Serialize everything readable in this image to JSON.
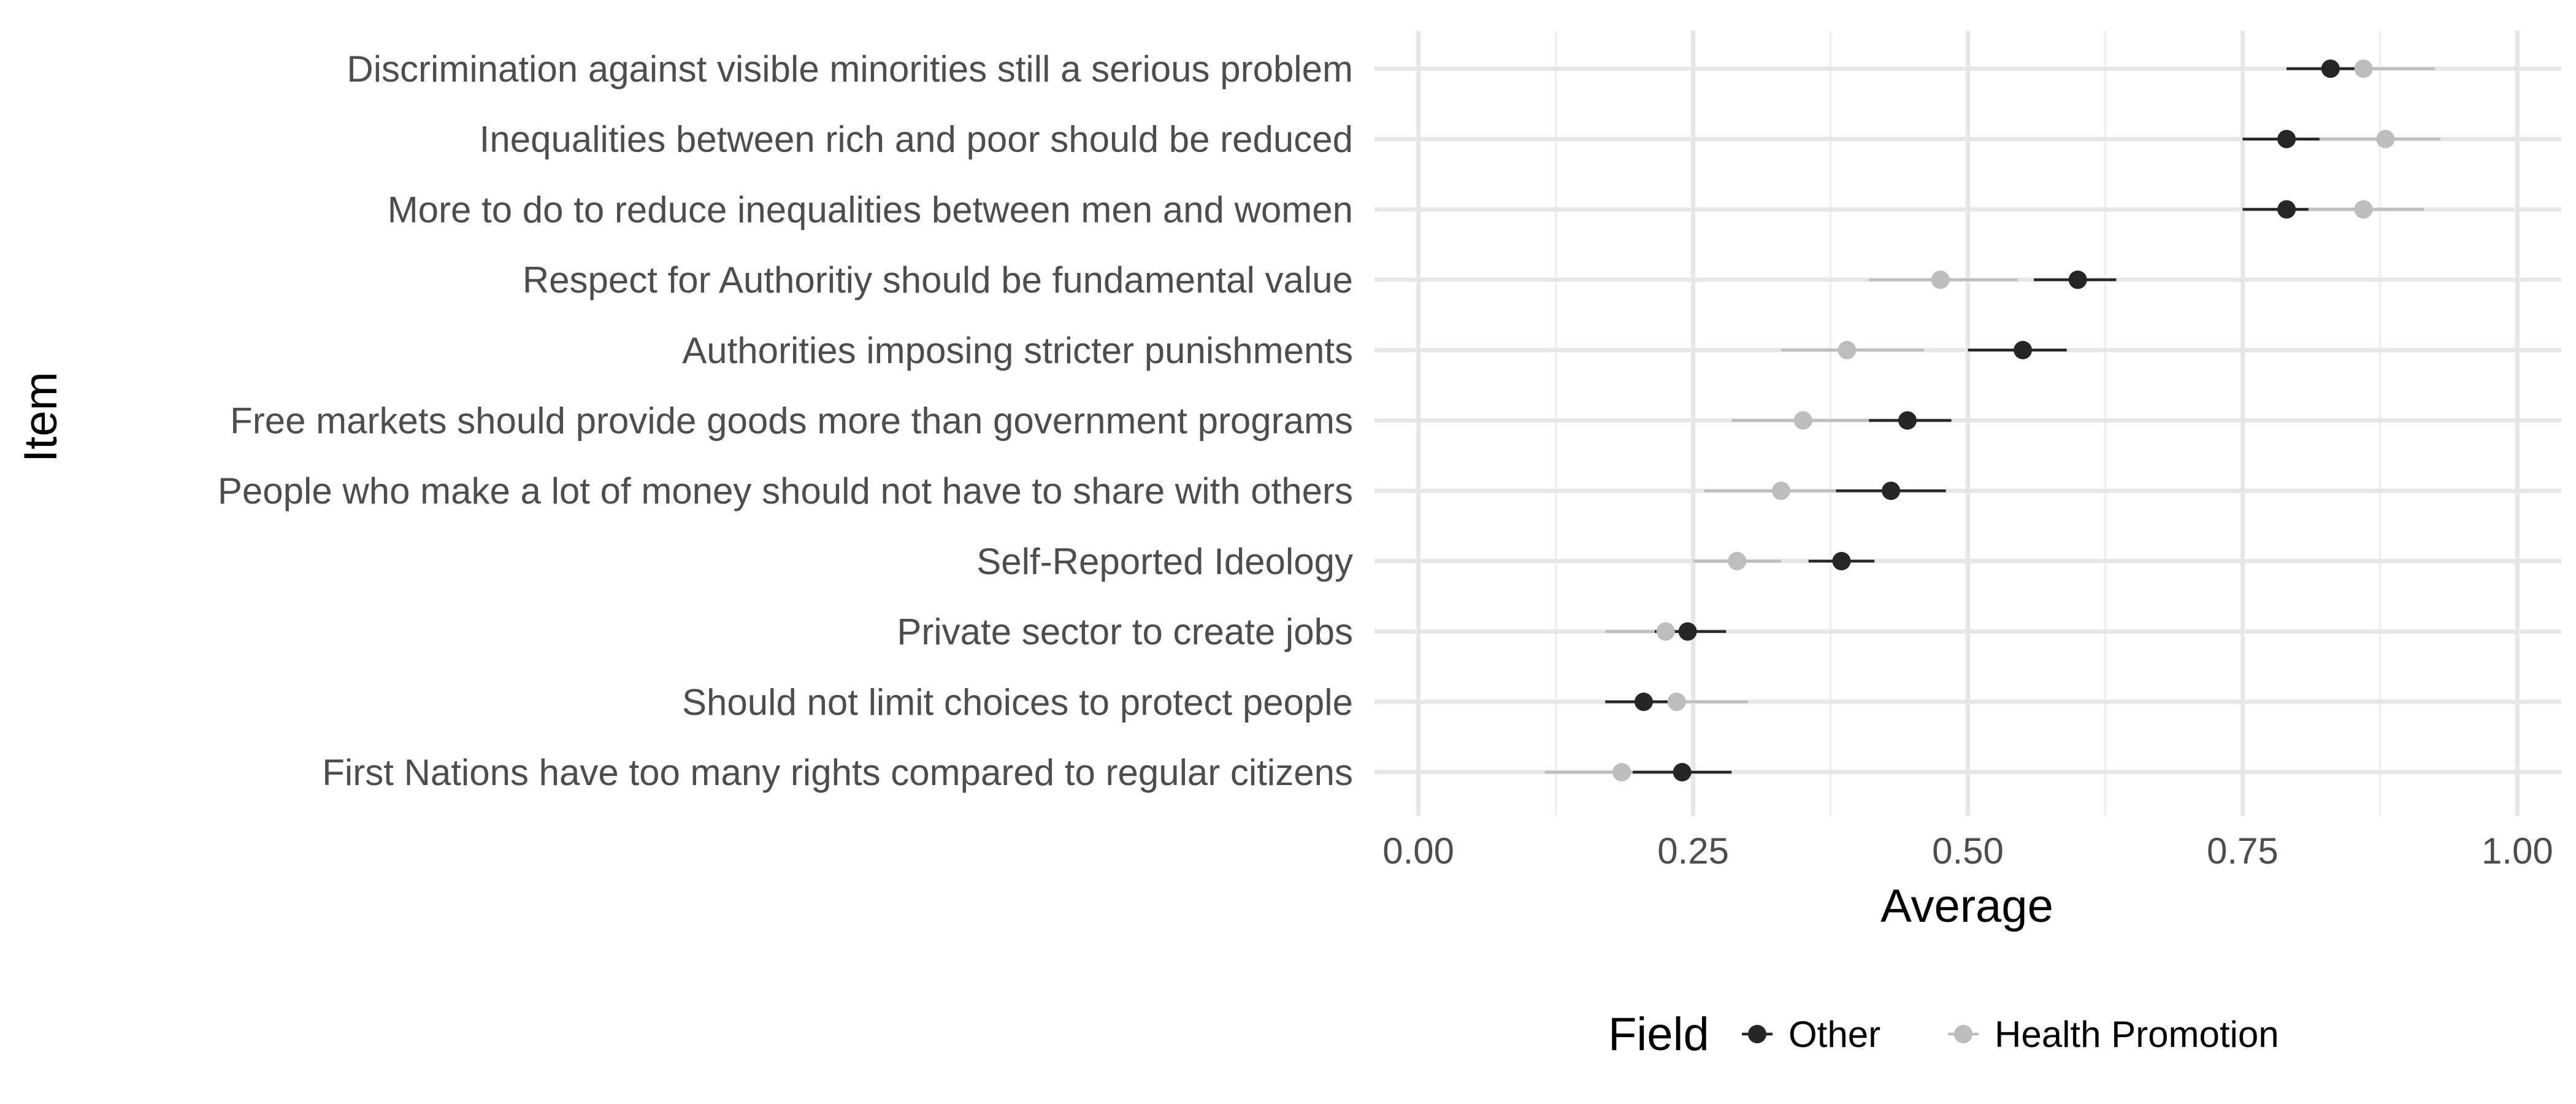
{
  "chart_data": {
    "type": "scatter",
    "subtype": "dot-and-interval",
    "title": "",
    "xlabel": "Average",
    "ylabel": "Item",
    "xlim": [
      -0.04,
      1.04
    ],
    "xticks": [
      0,
      0.25,
      0.5,
      0.75,
      1.0
    ],
    "xtick_labels": [
      "0.00",
      "0.25",
      "0.50",
      "0.75",
      "1.00"
    ],
    "grid": true,
    "legend": {
      "title": "Field",
      "position": "bottom",
      "entries": [
        "Other",
        "Health Promotion"
      ]
    },
    "categories": [
      "Discrimination against visible minorities still a serious problem",
      "Inequalities between rich and poor should be reduced",
      "More to do to reduce inequalities between men and women",
      "Respect for Authoritiy should be fundamental value",
      "Authorities imposing stricter punishments",
      "Free markets should provide goods more than government programs",
      "People who make a lot of money should not have to share with others",
      "Self-Reported Ideology",
      "Private sector to create jobs",
      "Should not limit choices to protect people",
      "First Nations have too many rights compared to regular citizens"
    ],
    "series": [
      {
        "name": "Other",
        "color": "#262626",
        "values": [
          0.83,
          0.79,
          0.79,
          0.6,
          0.55,
          0.445,
          0.43,
          0.385,
          0.245,
          0.205,
          0.24
        ],
        "lower": [
          0.79,
          0.75,
          0.75,
          0.56,
          0.5,
          0.41,
          0.38,
          0.355,
          0.215,
          0.17,
          0.195
        ],
        "upper": [
          0.86,
          0.82,
          0.81,
          0.635,
          0.59,
          0.485,
          0.48,
          0.415,
          0.28,
          0.24,
          0.285
        ]
      },
      {
        "name": "Health Promotion",
        "color": "#bdbdbd",
        "values": [
          0.86,
          0.88,
          0.86,
          0.475,
          0.39,
          0.35,
          0.33,
          0.29,
          0.225,
          0.235,
          0.185
        ],
        "lower": [
          0.79,
          0.82,
          0.8,
          0.41,
          0.33,
          0.285,
          0.26,
          0.25,
          0.17,
          0.17,
          0.115
        ],
        "upper": [
          0.925,
          0.93,
          0.915,
          0.545,
          0.46,
          0.415,
          0.4,
          0.33,
          0.27,
          0.3,
          0.25
        ]
      }
    ]
  },
  "colors": {
    "grid_major": "#e6e6e6",
    "grid_minor": "#f0f0f0",
    "tick_text": "#4d4d4d",
    "title_text": "#000000"
  }
}
